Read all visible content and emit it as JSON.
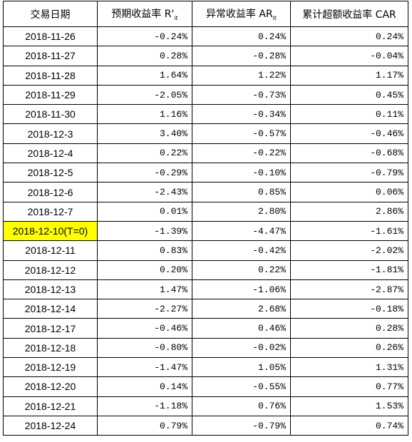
{
  "table": {
    "header": [
      {
        "text": "交易日期"
      },
      {
        "text": "预期收益率 R'",
        "sub": "it"
      },
      {
        "text": "异常收益率 AR",
        "sub": "it"
      },
      {
        "text": "累计超额收益率 CAR"
      }
    ],
    "rows": [
      [
        "2018-11-26",
        "-0.24%",
        "0.24%",
        "0.24%"
      ],
      [
        "2018-11-27",
        "0.28%",
        "-0.28%",
        "-0.04%"
      ],
      [
        "2018-11-28",
        "1.64%",
        "1.22%",
        "1.17%"
      ],
      [
        "2018-11-29",
        "-2.05%",
        "-0.73%",
        "0.45%"
      ],
      [
        "2018-11-30",
        "1.16%",
        "-0.34%",
        "0.11%"
      ],
      [
        "2018-12-3",
        "3.40%",
        "-0.57%",
        "-0.46%"
      ],
      [
        "2018-12-4",
        "0.22%",
        "-0.22%",
        "-0.68%"
      ],
      [
        "2018-12-5",
        "-0.29%",
        "-0.10%",
        "-0.79%"
      ],
      [
        "2018-12-6",
        "-2.43%",
        "0.85%",
        "0.06%"
      ],
      [
        "2018-12-7",
        "0.01%",
        "2.80%",
        "2.86%"
      ],
      [
        "2018-12-10(T=0)",
        "-1.39%",
        "-4.47%",
        "-1.61%"
      ],
      [
        "2018-12-11",
        "0.83%",
        "-0.42%",
        "-2.02%"
      ],
      [
        "2018-12-12",
        "0.20%",
        "0.22%",
        "-1.81%"
      ],
      [
        "2018-12-13",
        "1.47%",
        "-1.06%",
        "-2.87%"
      ],
      [
        "2018-12-14",
        "-2.27%",
        "2.68%",
        "-0.18%"
      ],
      [
        "2018-12-17",
        "-0.46%",
        "0.46%",
        "0.28%"
      ],
      [
        "2018-12-18",
        "-0.80%",
        "-0.02%",
        "0.26%"
      ],
      [
        "2018-12-19",
        "-1.47%",
        "1.05%",
        "1.31%"
      ],
      [
        "2018-12-20",
        "0.14%",
        "-0.55%",
        "0.77%"
      ],
      [
        "2018-12-21",
        "-1.18%",
        "0.76%",
        "1.53%"
      ],
      [
        "2018-12-24",
        "0.79%",
        "-0.79%",
        "0.74%"
      ]
    ]
  }
}
